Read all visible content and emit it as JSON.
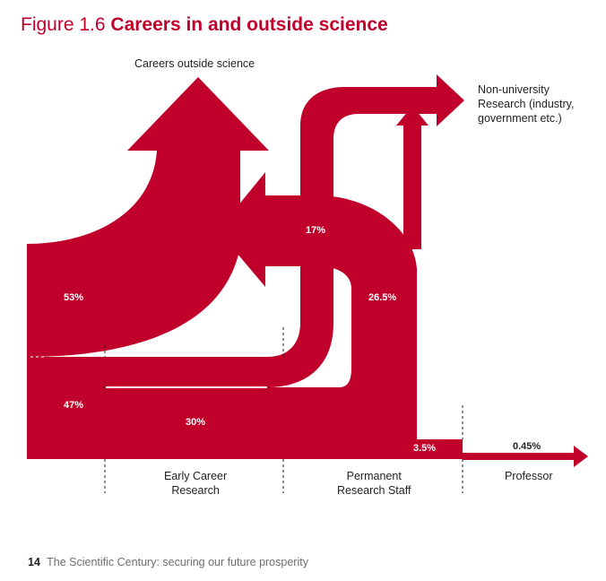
{
  "title": {
    "prefix": "Figure 1.6",
    "main": "Careers in and outside science"
  },
  "labels": {
    "careers_outside": "Careers outside science",
    "non_university": [
      "Non-university",
      "Research (industry,",
      "government etc.)"
    ],
    "early_career": [
      "Early Career",
      "Research"
    ],
    "permanent": [
      "Permanent",
      "Research Staff"
    ],
    "professor": "Professor"
  },
  "percentages": {
    "outside_53": "53%",
    "stay_47": "47%",
    "early_30": "30%",
    "non_uni_17": "17%",
    "permanent_26_5": "26.5%",
    "professor_3_5": "3.5%",
    "professor_0_45": "0.45%"
  },
  "footer": {
    "page": "14",
    "text": "The Scientific Century: securing our future prosperity"
  },
  "colors": {
    "flow": "#c0002a",
    "text": "#231f20",
    "footer": "#6d6e71"
  }
}
